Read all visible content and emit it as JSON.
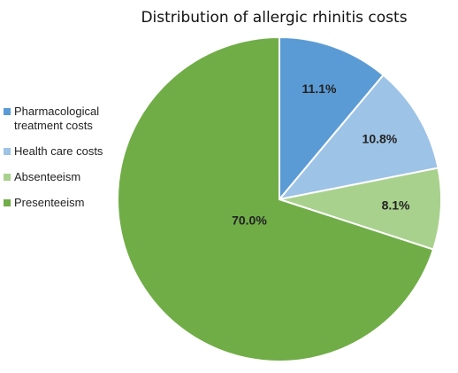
{
  "chart_data": {
    "type": "pie",
    "title": "Distribution of allergic rhinitis costs",
    "categories": [
      "Pharmacological treatment costs",
      "Health care costs",
      "Absenteeism",
      "Presenteeism"
    ],
    "values": [
      11.1,
      10.8,
      8.1,
      70.0
    ],
    "value_labels": [
      "11.1%",
      "10.8%",
      "8.1%",
      "70.0%"
    ],
    "colors": [
      "#5b9bd5",
      "#9dc3e6",
      "#a9d18e",
      "#70ad47"
    ],
    "legend": "left"
  }
}
